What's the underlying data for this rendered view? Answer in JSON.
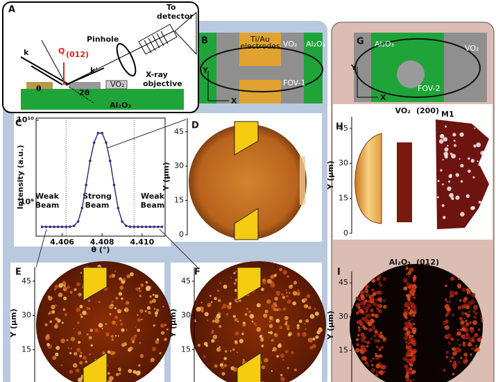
{
  "schematic": {
    "label": "A",
    "k": "k",
    "q": "Q",
    "q_sub": "(012)",
    "k_prime": "k'",
    "theta": "θ",
    "two_theta": "2θ",
    "pinhole": "Pinhole",
    "detector": [
      "To",
      "detector"
    ],
    "objective": [
      "X-ray",
      "objective"
    ],
    "film": "VO₂",
    "substrate": "Al₂O₃"
  },
  "layout_b": {
    "label": "B",
    "electrodes": [
      "Ti/Au",
      "electrodes"
    ],
    "film": "VO₂",
    "substrate": "Al₂O₃",
    "fov": "FOV-1",
    "y": "Y",
    "x": "X"
  },
  "layout_g": {
    "label": "G",
    "substrate": "Al₂O₃",
    "film": "VO₂",
    "fov": "FOV-2",
    "y": "Y",
    "x": "X"
  },
  "images": [
    {
      "label": "D",
      "y_label": "Y (µm)",
      "ylim": [
        0,
        51
      ],
      "yticks": [
        0,
        15,
        30,
        45
      ]
    },
    {
      "label": "E",
      "y_label": "Y (µm)",
      "ylim": [
        0,
        51
      ],
      "yticks": [
        15,
        30,
        45
      ]
    },
    {
      "label": "F",
      "y_label": "Y (µm)",
      "ylim": [
        0,
        51
      ],
      "yticks": [
        15,
        30,
        45
      ]
    },
    {
      "label": "H",
      "title": "VO₂",
      "title_paren": "(200)",
      "title_sub": "M1",
      "y_label": "Y (µm)",
      "ylim": [
        0,
        50
      ],
      "yticks": [
        0,
        15,
        30,
        45
      ]
    },
    {
      "label": "I",
      "title": "Al₂O₃",
      "title_paren": "(012)",
      "y_label": "Y (µm)",
      "ylim": [
        0,
        50
      ],
      "yticks": [
        15,
        30,
        45
      ]
    }
  ],
  "chart_data": {
    "type": "line",
    "label": "C",
    "x_label": "θ (°)",
    "y_label": "Intensity (a.u.)",
    "yscale": "log",
    "color": "#3b2a7a",
    "x": [
      4.405,
      4.4052,
      4.4054,
      4.4056,
      4.4058,
      4.406,
      4.4062,
      4.4064,
      4.4066,
      4.4068,
      4.407,
      4.4072,
      4.4074,
      4.4076,
      4.4078,
      4.408,
      4.4082,
      4.4084,
      4.4086,
      4.4088,
      4.409,
      4.4092,
      4.4094,
      4.4096,
      4.4098,
      4.41,
      4.4102,
      4.4104,
      4.4106,
      4.4108,
      4.411
    ],
    "values": [
      500000000.0,
      500000000.0,
      500000000.0,
      500000000.0,
      500000000.0,
      500000000.0,
      500000000.0,
      502000000.0,
      514000000.0,
      581000000.0,
      848000000.0,
      1620000000.0,
      3190000000.0,
      5320000000.0,
      6960000000.0,
      6960000000.0,
      5320000000.0,
      3190000000.0,
      1620000000.0,
      848000000.0,
      581000000.0,
      514000000.0,
      502000000.0,
      500000000.0,
      500000000.0,
      500000000.0,
      500000000.0,
      500000000.0,
      500000000.0,
      500000000.0,
      500000000.0
    ],
    "xlim": [
      4.4047,
      4.41115
    ],
    "ylim": [
      385000000.0,
      10600000000.0
    ],
    "xticks": [
      4.406,
      4.408,
      {
        "value": 4.41,
        "label": "4.410"
      }
    ],
    "yticks": [
      {
        "value": 1000000000.0,
        "label": "10⁹"
      },
      {
        "value": 10000000000.0,
        "label": "10¹⁰"
      }
    ],
    "region_bounds": [
      4.4062,
      4.4096
    ],
    "annotations": [
      [
        "Weak",
        "Beam"
      ],
      [
        "Strong",
        "Beam"
      ],
      [
        "Weak",
        "Beam"
      ]
    ]
  }
}
